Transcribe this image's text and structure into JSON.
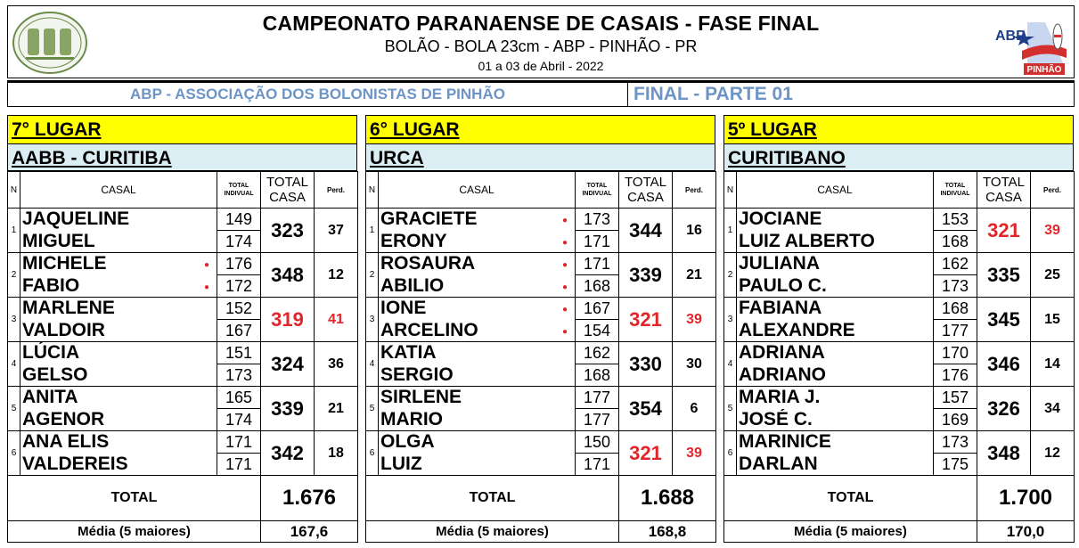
{
  "header": {
    "title": "CAMPEONATO PARANAENSE DE CASAIS - FASE FINAL",
    "subtitle": "BOLÃO - BOLA 23cm - ABP - PINHÃO - PR",
    "date": "01 a 03 de Abril - 2022",
    "logo_right_text": "ABP",
    "logo_right_sub": "PINHÃO"
  },
  "subheader": {
    "association": "ABP - ASSOCIAÇÃO DOS BOLONISTAS DE PINHÃO",
    "stage": "FINAL - PARTE 01"
  },
  "columns": {
    "n": "N",
    "casal": "CASAL",
    "total_ind_1": "TOTAL",
    "total_ind_2": "INDIVUAL",
    "total_casa_1": "TOTAL",
    "total_casa_2": "CASA",
    "perd": "Perd."
  },
  "labels": {
    "total": "TOTAL",
    "media": "Média (5 maiores)"
  },
  "colors": {
    "place_bar": "#ffff00",
    "team_bar": "#dbeef4",
    "accent_blue": "#6d94c6",
    "red": "#e0262a"
  },
  "panels": [
    {
      "place": "7° LUGAR",
      "team": "AABB - CURITIBA",
      "total": "1.676",
      "media": "167,6",
      "rows": [
        {
          "n": "1",
          "p1": "JAQUELINE",
          "p2": "MIGUEL",
          "s1": "149",
          "s2": "174",
          "casa": "323",
          "perd": "37",
          "dot1": false,
          "dot2": false,
          "red": false
        },
        {
          "n": "2",
          "p1": "MICHELE",
          "p2": "FABIO",
          "s1": "176",
          "s2": "172",
          "casa": "348",
          "perd": "12",
          "dot1": true,
          "dot2": true,
          "red": false
        },
        {
          "n": "3",
          "p1": "MARLENE",
          "p2": "VALDOIR",
          "s1": "152",
          "s2": "167",
          "casa": "319",
          "perd": "41",
          "dot1": false,
          "dot2": false,
          "red": true
        },
        {
          "n": "4",
          "p1": "LÚCIA",
          "p2": "GELSO",
          "s1": "151",
          "s2": "173",
          "casa": "324",
          "perd": "36",
          "dot1": false,
          "dot2": false,
          "red": false
        },
        {
          "n": "5",
          "p1": "ANITA",
          "p2": "AGENOR",
          "s1": "165",
          "s2": "174",
          "casa": "339",
          "perd": "21",
          "dot1": false,
          "dot2": false,
          "red": false
        },
        {
          "n": "6",
          "p1": "ANA ELIS",
          "p2": "VALDEREIS",
          "s1": "171",
          "s2": "171",
          "casa": "342",
          "perd": "18",
          "dot1": false,
          "dot2": false,
          "red": false
        }
      ]
    },
    {
      "place": "6° LUGAR",
      "team": "URCA",
      "total": "1.688",
      "media": "168,8",
      "rows": [
        {
          "n": "1",
          "p1": "GRACIETE",
          "p2": "ERONY",
          "s1": "173",
          "s2": "171",
          "casa": "344",
          "perd": "16",
          "dot1": true,
          "dot2": true,
          "red": false
        },
        {
          "n": "2",
          "p1": "ROSAURA",
          "p2": "ABILIO",
          "s1": "171",
          "s2": "168",
          "casa": "339",
          "perd": "21",
          "dot1": true,
          "dot2": true,
          "red": false
        },
        {
          "n": "3",
          "p1": "IONE",
          "p2": "ARCELINO",
          "s1": "167",
          "s2": "154",
          "casa": "321",
          "perd": "39",
          "dot1": true,
          "dot2": true,
          "red": true
        },
        {
          "n": "4",
          "p1": "KATIA",
          "p2": "SERGIO",
          "s1": "162",
          "s2": "168",
          "casa": "330",
          "perd": "30",
          "dot1": false,
          "dot2": false,
          "red": false
        },
        {
          "n": "5",
          "p1": "SIRLENE",
          "p2": "MARIO",
          "s1": "177",
          "s2": "177",
          "casa": "354",
          "perd": "6",
          "dot1": false,
          "dot2": false,
          "red": false
        },
        {
          "n": "6",
          "p1": "OLGA",
          "p2": "LUIZ",
          "s1": "150",
          "s2": "171",
          "casa": "321",
          "perd": "39",
          "dot1": false,
          "dot2": false,
          "red": true
        }
      ]
    },
    {
      "place": "5º LUGAR",
      "team": "CURITIBANO",
      "total": "1.700",
      "media": "170,0",
      "rows": [
        {
          "n": "1",
          "p1": "JOCIANE",
          "p2": "LUIZ ALBERTO",
          "s1": "153",
          "s2": "168",
          "casa": "321",
          "perd": "39",
          "dot1": false,
          "dot2": false,
          "red": true
        },
        {
          "n": "2",
          "p1": "JULIANA",
          "p2": "PAULO C.",
          "s1": "162",
          "s2": "173",
          "casa": "335",
          "perd": "25",
          "dot1": false,
          "dot2": false,
          "red": false
        },
        {
          "n": "3",
          "p1": "FABIANA",
          "p2": "ALEXANDRE",
          "s1": "168",
          "s2": "177",
          "casa": "345",
          "perd": "15",
          "dot1": false,
          "dot2": false,
          "red": false
        },
        {
          "n": "4",
          "p1": "ADRIANA",
          "p2": "ADRIANO",
          "s1": "170",
          "s2": "176",
          "casa": "346",
          "perd": "14",
          "dot1": false,
          "dot2": false,
          "red": false
        },
        {
          "n": "5",
          "p1": "MARIA J.",
          "p2": "JOSÉ C.",
          "s1": "157",
          "s2": "169",
          "casa": "326",
          "perd": "34",
          "dot1": false,
          "dot2": false,
          "red": false
        },
        {
          "n": "6",
          "p1": "MARINICE",
          "p2": "DARLAN",
          "s1": "173",
          "s2": "175",
          "casa": "348",
          "perd": "12",
          "dot1": false,
          "dot2": false,
          "red": false
        }
      ]
    }
  ]
}
